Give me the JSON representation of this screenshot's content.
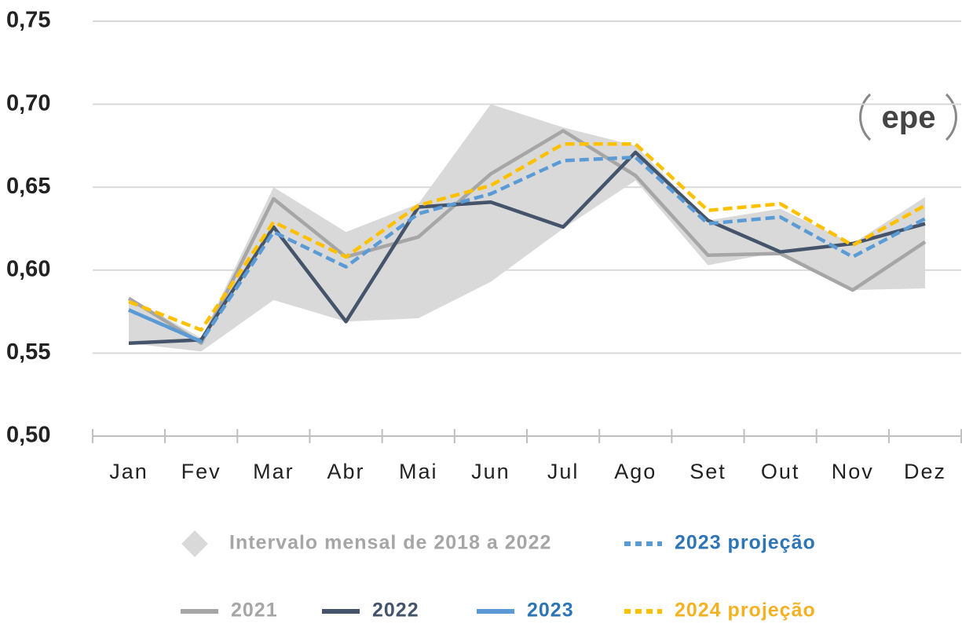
{
  "chart_data": {
    "type": "line",
    "logo": "epe",
    "categories": [
      "Jan",
      "Fev",
      "Mar",
      "Abr",
      "Mai",
      "Jun",
      "Jul",
      "Ago",
      "Set",
      "Out",
      "Nov",
      "Dez"
    ],
    "ylim": [
      0.5,
      0.75
    ],
    "yticks": [
      {
        "value": 0.5,
        "label": "0,50"
      },
      {
        "value": 0.55,
        "label": "0,55"
      },
      {
        "value": 0.6,
        "label": "0,60"
      },
      {
        "value": 0.65,
        "label": "0,65"
      },
      {
        "value": 0.7,
        "label": "0,70"
      },
      {
        "value": 0.75,
        "label": "0,75"
      }
    ],
    "grid": true,
    "band": {
      "name": "Intervalo mensal de 2018 a 2022",
      "color": "#d9d9d9",
      "text_color": "#a6a6a6",
      "upper": [
        0.584,
        0.559,
        0.65,
        0.623,
        0.64,
        0.7,
        0.686,
        0.675,
        0.63,
        0.637,
        0.616,
        0.644
      ],
      "lower": [
        0.556,
        0.551,
        0.582,
        0.569,
        0.571,
        0.593,
        0.625,
        0.654,
        0.603,
        0.611,
        0.588,
        0.589
      ]
    },
    "series": [
      {
        "name": "2021",
        "color": "#a6a6a6",
        "dashed": false,
        "values": [
          0.583,
          0.556,
          0.643,
          0.608,
          0.62,
          0.658,
          0.684,
          0.657,
          0.609,
          0.61,
          0.588,
          0.617
        ]
      },
      {
        "name": "2022",
        "color": "#44546a",
        "dashed": false,
        "values": [
          0.556,
          0.558,
          0.626,
          0.569,
          0.638,
          0.641,
          0.626,
          0.671,
          0.63,
          0.611,
          0.616,
          0.628
        ]
      },
      {
        "name": "2023",
        "color": "#5b9bd5",
        "text_color": "#2e75b6",
        "dashed": false,
        "values": [
          0.576,
          0.557,
          null,
          null,
          null,
          null,
          null,
          null,
          null,
          null,
          null,
          null
        ]
      },
      {
        "name": "2023 projeção",
        "color": "#5b9bd5",
        "text_color": "#2e75b6",
        "dashed": true,
        "values": [
          0.576,
          0.557,
          0.623,
          0.602,
          0.634,
          0.646,
          0.666,
          0.668,
          0.628,
          0.632,
          0.608,
          0.631
        ]
      },
      {
        "name": "2024 projeção",
        "color": "#ffc000",
        "text_color": "#f4b223",
        "dashed": true,
        "values": [
          0.581,
          0.564,
          0.629,
          0.608,
          0.639,
          0.651,
          0.676,
          0.676,
          0.636,
          0.64,
          0.615,
          0.639
        ]
      }
    ]
  }
}
